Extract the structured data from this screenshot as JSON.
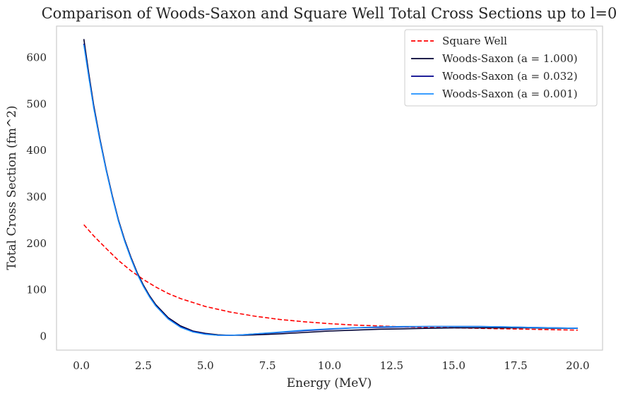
{
  "chart_data": {
    "type": "line",
    "title": "Comparison of Woods-Saxon and Square Well Total Cross Sections up to l=0",
    "xlabel": "Energy (MeV)",
    "ylabel": "Total Cross Section (fm^2)",
    "xlim": [
      -1.0,
      21.0
    ],
    "ylim": [
      -30,
      668
    ],
    "xticks": [
      0.0,
      2.5,
      5.0,
      7.5,
      10.0,
      12.5,
      15.0,
      17.5,
      20.0
    ],
    "xtick_labels": [
      "0.0",
      "2.5",
      "5.0",
      "7.5",
      "10.0",
      "12.5",
      "15.0",
      "17.5",
      "20.0"
    ],
    "yticks": [
      0,
      100,
      200,
      300,
      400,
      500,
      600
    ],
    "ytick_labels": [
      "0",
      "100",
      "200",
      "300",
      "400",
      "500",
      "600"
    ],
    "grid": false,
    "legend_position": "top-right",
    "series": [
      {
        "name": "Square Well",
        "color": "#ff0000",
        "dash": "dashed",
        "x": [
          0.1,
          0.5,
          1.0,
          1.5,
          2.0,
          2.5,
          3.0,
          3.5,
          4.0,
          5.0,
          6.0,
          7.0,
          8.0,
          9.0,
          10.0,
          11.0,
          12.0,
          13.0,
          14.0,
          15.0,
          16.0,
          17.0,
          18.0,
          19.0,
          20.0
        ],
        "y": [
          240,
          216,
          189,
          163,
          141,
          122,
          106,
          92,
          81,
          64,
          52,
          43,
          36,
          31,
          27,
          24,
          22,
          20,
          19,
          18,
          17,
          16,
          15,
          14,
          13
        ]
      },
      {
        "name": "Woods-Saxon (a = 1.000)",
        "color": "#000033",
        "dash": "solid",
        "x": [
          0.1,
          0.3,
          0.5,
          0.75,
          1.0,
          1.25,
          1.5,
          1.75,
          2.0,
          2.25,
          2.5,
          2.75,
          3.0,
          3.5,
          4.0,
          4.5,
          5.0,
          5.5,
          6.0,
          6.5,
          7.0,
          8.0,
          9.0,
          10.0,
          11.0,
          12.0,
          13.0,
          14.0,
          15.0,
          16.0,
          17.0,
          18.0,
          19.0,
          20.0
        ],
        "y": [
          640,
          566,
          497,
          425,
          360,
          302,
          250,
          207,
          170,
          137,
          110,
          87,
          68,
          40,
          22,
          11,
          6,
          3,
          2,
          2,
          3,
          5,
          8,
          11,
          13,
          15,
          16,
          17,
          18,
          18,
          18,
          18,
          17,
          17
        ]
      },
      {
        "name": "Woods-Saxon (a = 0.032)",
        "color": "#00008b",
        "dash": "solid",
        "x": [
          0.1,
          0.3,
          0.5,
          0.75,
          1.0,
          1.25,
          1.5,
          1.75,
          2.0,
          2.25,
          2.5,
          2.75,
          3.0,
          3.5,
          4.0,
          4.5,
          5.0,
          5.5,
          6.0,
          6.5,
          7.0,
          8.0,
          9.0,
          10.0,
          11.0,
          12.0,
          13.0,
          14.0,
          15.0,
          16.0,
          17.0,
          18.0,
          19.0,
          20.0
        ],
        "y": [
          630,
          560,
          493,
          422,
          358,
          300,
          248,
          205,
          168,
          135,
          108,
          85,
          66,
          38,
          20,
          10,
          5,
          2,
          2,
          3,
          5,
          8,
          12,
          15,
          18,
          19,
          20,
          21,
          21,
          21,
          20,
          19,
          18,
          17
        ]
      },
      {
        "name": "Woods-Saxon (a = 0.001)",
        "color": "#1e90ff",
        "dash": "solid",
        "x": [
          0.1,
          0.3,
          0.5,
          0.75,
          1.0,
          1.25,
          1.5,
          1.75,
          2.0,
          2.25,
          2.5,
          2.75,
          3.0,
          3.5,
          4.0,
          4.5,
          5.0,
          5.5,
          6.0,
          6.5,
          7.0,
          8.0,
          9.0,
          10.0,
          11.0,
          12.0,
          13.0,
          14.0,
          15.0,
          16.0,
          17.0,
          18.0,
          19.0,
          20.0
        ],
        "y": [
          628,
          558,
          491,
          421,
          357,
          299,
          247,
          204,
          167,
          134,
          107,
          84,
          65,
          37,
          19,
          9,
          4,
          2,
          2,
          3,
          5,
          9,
          13,
          16,
          18,
          20,
          21,
          21,
          21,
          21,
          20,
          19,
          18,
          17
        ]
      }
    ]
  }
}
